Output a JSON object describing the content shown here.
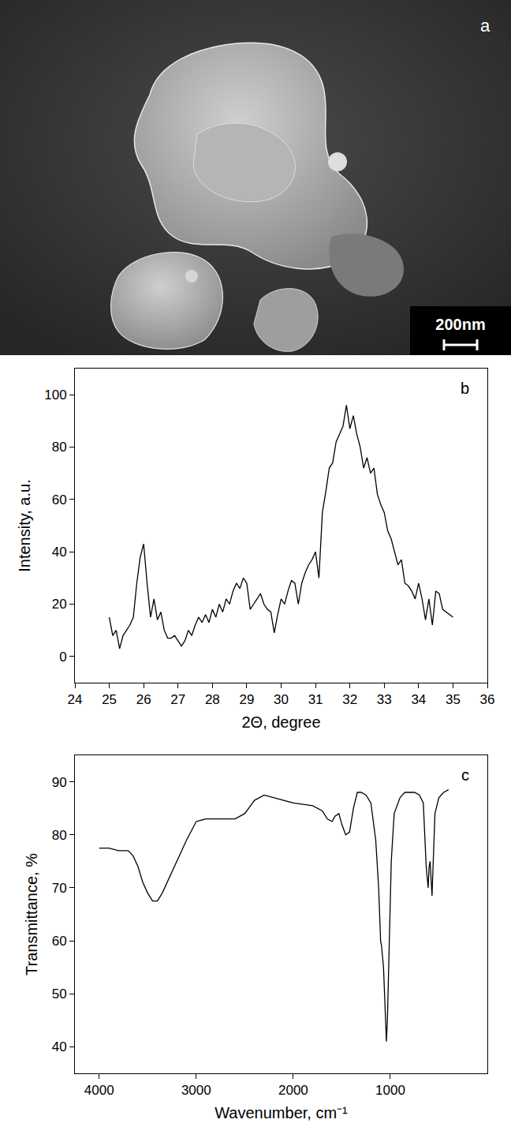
{
  "image_panel": {
    "annotation": "a",
    "scale_bar": "200nm"
  },
  "chart_data": [
    {
      "type": "line",
      "annotation": "b",
      "x_label": "2Θ, degree",
      "y_label": "Intensity, a.u.",
      "color": "#000000",
      "grid": false,
      "x": [
        25.0,
        25.1,
        25.2,
        25.3,
        25.4,
        25.5,
        25.6,
        25.7,
        25.8,
        25.9,
        26.0,
        26.1,
        26.2,
        26.3,
        26.4,
        26.5,
        26.6,
        26.7,
        26.8,
        26.9,
        27.0,
        27.1,
        27.2,
        27.3,
        27.4,
        27.5,
        27.6,
        27.7,
        27.8,
        27.9,
        28.0,
        28.1,
        28.2,
        28.3,
        28.4,
        28.5,
        28.6,
        28.7,
        28.8,
        28.9,
        29.0,
        29.1,
        29.2,
        29.3,
        29.4,
        29.5,
        29.6,
        29.7,
        29.8,
        29.9,
        30.0,
        30.1,
        30.2,
        30.3,
        30.4,
        30.5,
        30.6,
        30.7,
        30.8,
        30.9,
        31.0,
        31.1,
        31.2,
        31.3,
        31.4,
        31.5,
        31.6,
        31.7,
        31.8,
        31.9,
        32.0,
        32.1,
        32.2,
        32.3,
        32.4,
        32.5,
        32.6,
        32.7,
        32.8,
        32.9,
        33.0,
        33.1,
        33.2,
        33.3,
        33.4,
        33.5,
        33.6,
        33.7,
        33.8,
        33.9,
        34.0,
        34.1,
        34.2,
        34.3,
        34.4,
        34.5,
        34.6,
        34.7,
        34.8,
        34.9,
        35.0
      ],
      "values": [
        15,
        8,
        10,
        3,
        8,
        10,
        12,
        15,
        28,
        38,
        43,
        28,
        15,
        22,
        14,
        17,
        10,
        7,
        7,
        8,
        6,
        4,
        6,
        10,
        8,
        12,
        15,
        13,
        16,
        13,
        18,
        15,
        20,
        17,
        22,
        20,
        25,
        28,
        26,
        30,
        28,
        18,
        20,
        22,
        24,
        20,
        18,
        17,
        9,
        16,
        22,
        20,
        25,
        29,
        28,
        20,
        28,
        32,
        35,
        37,
        40,
        30,
        55,
        63,
        72,
        74,
        82,
        85,
        88,
        96,
        87,
        92,
        85,
        80,
        72,
        76,
        70,
        72,
        62,
        58,
        55,
        48,
        45,
        40,
        35,
        37,
        28,
        27,
        25,
        22,
        28,
        22,
        14,
        22,
        12,
        25,
        24,
        18,
        17,
        16,
        15
      ],
      "xlim": [
        24,
        36
      ],
      "xticks": [
        24,
        25,
        26,
        27,
        28,
        29,
        30,
        31,
        32,
        33,
        34,
        35,
        36
      ],
      "ylim": [
        -10,
        110
      ],
      "yticks": [
        0,
        20,
        40,
        60,
        80,
        100
      ]
    },
    {
      "type": "line",
      "annotation": "c",
      "x_label": "Wavenumber, cm⁻¹",
      "y_label": "Transmittance, %",
      "color": "#000000",
      "grid": false,
      "x": [
        4000,
        3900,
        3800,
        3700,
        3650,
        3600,
        3550,
        3500,
        3450,
        3400,
        3350,
        3300,
        3200,
        3100,
        3000,
        2900,
        2800,
        2700,
        2600,
        2500,
        2400,
        2300,
        2200,
        2000,
        1800,
        1700,
        1650,
        1600,
        1570,
        1530,
        1500,
        1460,
        1420,
        1380,
        1340,
        1300,
        1250,
        1200,
        1150,
        1120,
        1100,
        1090,
        1070,
        1050,
        1040,
        1030,
        1010,
        990,
        960,
        900,
        850,
        800,
        750,
        700,
        660,
        630,
        610,
        600,
        590,
        570,
        560,
        540,
        500,
        450,
        400
      ],
      "values": [
        77.5,
        77.5,
        77,
        77,
        76,
        74,
        71,
        69,
        67.5,
        67.5,
        69,
        71,
        75,
        79,
        82.5,
        83,
        83,
        83,
        83,
        84,
        86.5,
        87.5,
        87,
        86,
        85.5,
        84.5,
        83,
        82.5,
        83.5,
        84,
        82,
        80,
        80.5,
        85,
        88,
        88,
        87.5,
        86,
        79,
        70,
        60,
        59,
        55,
        45,
        41,
        45,
        60,
        75,
        84,
        87,
        88,
        88,
        88,
        87.5,
        86,
        74,
        70,
        74,
        75,
        68.5,
        74,
        84,
        87,
        88,
        88.5
      ],
      "xlim": [
        4250,
        0
      ],
      "xticks": [
        4000,
        3000,
        2000,
        1000
      ],
      "ylim": [
        35,
        95
      ],
      "yticks": [
        40,
        50,
        60,
        70,
        80,
        90
      ]
    }
  ]
}
